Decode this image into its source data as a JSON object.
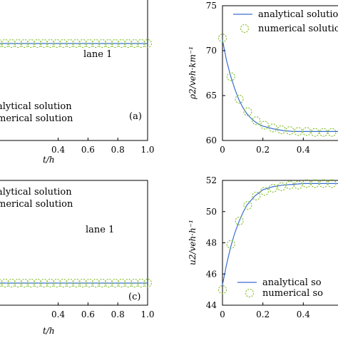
{
  "chart_data": [
    {
      "panel": "a",
      "type": "line",
      "panel_label": "(a)",
      "annotation": "lane 1",
      "xlabel": "t/h",
      "ylabel": "",
      "xlim": [
        0,
        1.0
      ],
      "ylim": [
        null,
        null
      ],
      "xticks": [
        "0.4",
        "0.6",
        "0.8",
        "1.0"
      ],
      "yticks": [],
      "legend": {
        "placement": "bottom-left",
        "entries": [
          "alytical solution",
          "merical solution"
        ]
      },
      "series": [
        {
          "name": "analytical",
          "style": "line",
          "x": [
            0.0,
            1.0
          ],
          "y": [
            1.0,
            1.0
          ]
        },
        {
          "name": "numerical",
          "style": "circle-markers",
          "x": [
            0.0,
            0.0435,
            0.087,
            0.1304,
            0.1739,
            0.2174,
            0.2609,
            0.3043,
            0.3478,
            0.3913,
            0.4348,
            0.4783,
            0.5217,
            0.5652,
            0.6087,
            0.6522,
            0.6957,
            0.7391,
            0.7826,
            0.8261,
            0.8696,
            0.913,
            0.9565,
            1.0
          ],
          "y": [
            1,
            1,
            1,
            1,
            1,
            1,
            1,
            1,
            1,
            1,
            1,
            1,
            1,
            1,
            1,
            1,
            1,
            1,
            1,
            1,
            1,
            1,
            1,
            1
          ]
        }
      ]
    },
    {
      "panel": "b",
      "type": "line",
      "xlabel": "t/h",
      "ylabel": "ρ2/veh·km⁻¹",
      "xlim": [
        0,
        0.6
      ],
      "ylim": [
        60,
        75
      ],
      "xticks": [
        "0",
        "0.2",
        "0.4"
      ],
      "yticks": [
        "60",
        "65",
        "70",
        "75"
      ],
      "legend": {
        "placement": "top-right",
        "entries": [
          "analytical solution",
          "numerical solution"
        ]
      },
      "series": [
        {
          "name": "analytical solution",
          "style": "line",
          "x": [
            0,
            0.02,
            0.04,
            0.06,
            0.08,
            0.1,
            0.12,
            0.14,
            0.16,
            0.18,
            0.2,
            0.25,
            0.3,
            0.35,
            0.4,
            0.45,
            0.5,
            0.55,
            0.6
          ],
          "y": [
            71.2,
            68.9,
            67.2,
            65.8,
            64.6,
            63.7,
            63.0,
            62.5,
            62.1,
            61.8,
            61.6,
            61.3,
            61.1,
            61.0,
            61.0,
            61.0,
            61.0,
            61.0,
            61.0
          ]
        },
        {
          "name": "numerical solution",
          "style": "circle-markers",
          "x": [
            0,
            0.0417,
            0.0833,
            0.125,
            0.1667,
            0.2083,
            0.25,
            0.2917,
            0.3333,
            0.375,
            0.4167,
            0.4583,
            0.5,
            0.5417
          ],
          "y": [
            71.4,
            67.1,
            64.6,
            63.2,
            62.2,
            61.7,
            61.4,
            61.2,
            61.1,
            61.0,
            61.0,
            60.9,
            60.9,
            60.9
          ]
        }
      ]
    },
    {
      "panel": "c",
      "type": "line",
      "panel_label": "(c)",
      "annotation": "lane 1",
      "xlabel": "t/h",
      "ylabel": "",
      "xlim": [
        0,
        1.0
      ],
      "ylim": [
        null,
        null
      ],
      "xticks": [
        "0.4",
        "0.6",
        "0.8",
        "1.0"
      ],
      "yticks": [],
      "legend": {
        "placement": "top-left",
        "entries": [
          "alytical solution",
          "merical solution"
        ]
      },
      "series": [
        {
          "name": "analytical",
          "style": "line",
          "x": [
            0.0,
            1.0
          ],
          "y": [
            1.0,
            1.0
          ]
        },
        {
          "name": "numerical",
          "style": "circle-markers",
          "x": [
            0.0,
            0.0435,
            0.087,
            0.1304,
            0.1739,
            0.2174,
            0.2609,
            0.3043,
            0.3478,
            0.3913,
            0.4348,
            0.4783,
            0.5217,
            0.5652,
            0.6087,
            0.6522,
            0.6957,
            0.7391,
            0.7826,
            0.8261,
            0.8696,
            0.913,
            0.9565,
            1.0
          ],
          "y": [
            1,
            1,
            1,
            1,
            1,
            1,
            1,
            1,
            1,
            1,
            1,
            1,
            1,
            1,
            1,
            1,
            1,
            1,
            1,
            1,
            1,
            1,
            1,
            1
          ]
        }
      ]
    },
    {
      "panel": "d",
      "type": "line",
      "xlabel": "t/h",
      "ylabel": "u2/veh·h⁻¹",
      "xlim": [
        0,
        0.6
      ],
      "ylim": [
        44,
        52
      ],
      "xticks": [
        "0",
        "0.2",
        "0.4"
      ],
      "yticks": [
        "44",
        "46",
        "48",
        "50",
        "52"
      ],
      "legend": {
        "placement": "bottom-right",
        "entries": [
          "analytical so",
          "numerical so"
        ]
      },
      "series": [
        {
          "name": "analytical so",
          "style": "line",
          "x": [
            0,
            0.02,
            0.04,
            0.06,
            0.08,
            0.1,
            0.12,
            0.14,
            0.16,
            0.18,
            0.2,
            0.25,
            0.3,
            0.35,
            0.4,
            0.45,
            0.5,
            0.55,
            0.6
          ],
          "y": [
            45.3,
            46.6,
            47.7,
            48.6,
            49.3,
            49.9,
            50.4,
            50.7,
            51.0,
            51.2,
            51.4,
            51.6,
            51.7,
            51.75,
            51.8,
            51.8,
            51.8,
            51.8,
            51.8
          ]
        },
        {
          "name": "numerical so",
          "style": "circle-markers",
          "x": [
            0,
            0.0417,
            0.0833,
            0.125,
            0.1667,
            0.2083,
            0.25,
            0.2917,
            0.3333,
            0.375,
            0.4167,
            0.4583,
            0.5,
            0.5417
          ],
          "y": [
            45.0,
            47.9,
            49.4,
            50.4,
            51.0,
            51.3,
            51.5,
            51.6,
            51.7,
            51.7,
            51.8,
            51.8,
            51.8,
            51.8
          ]
        }
      ]
    }
  ]
}
